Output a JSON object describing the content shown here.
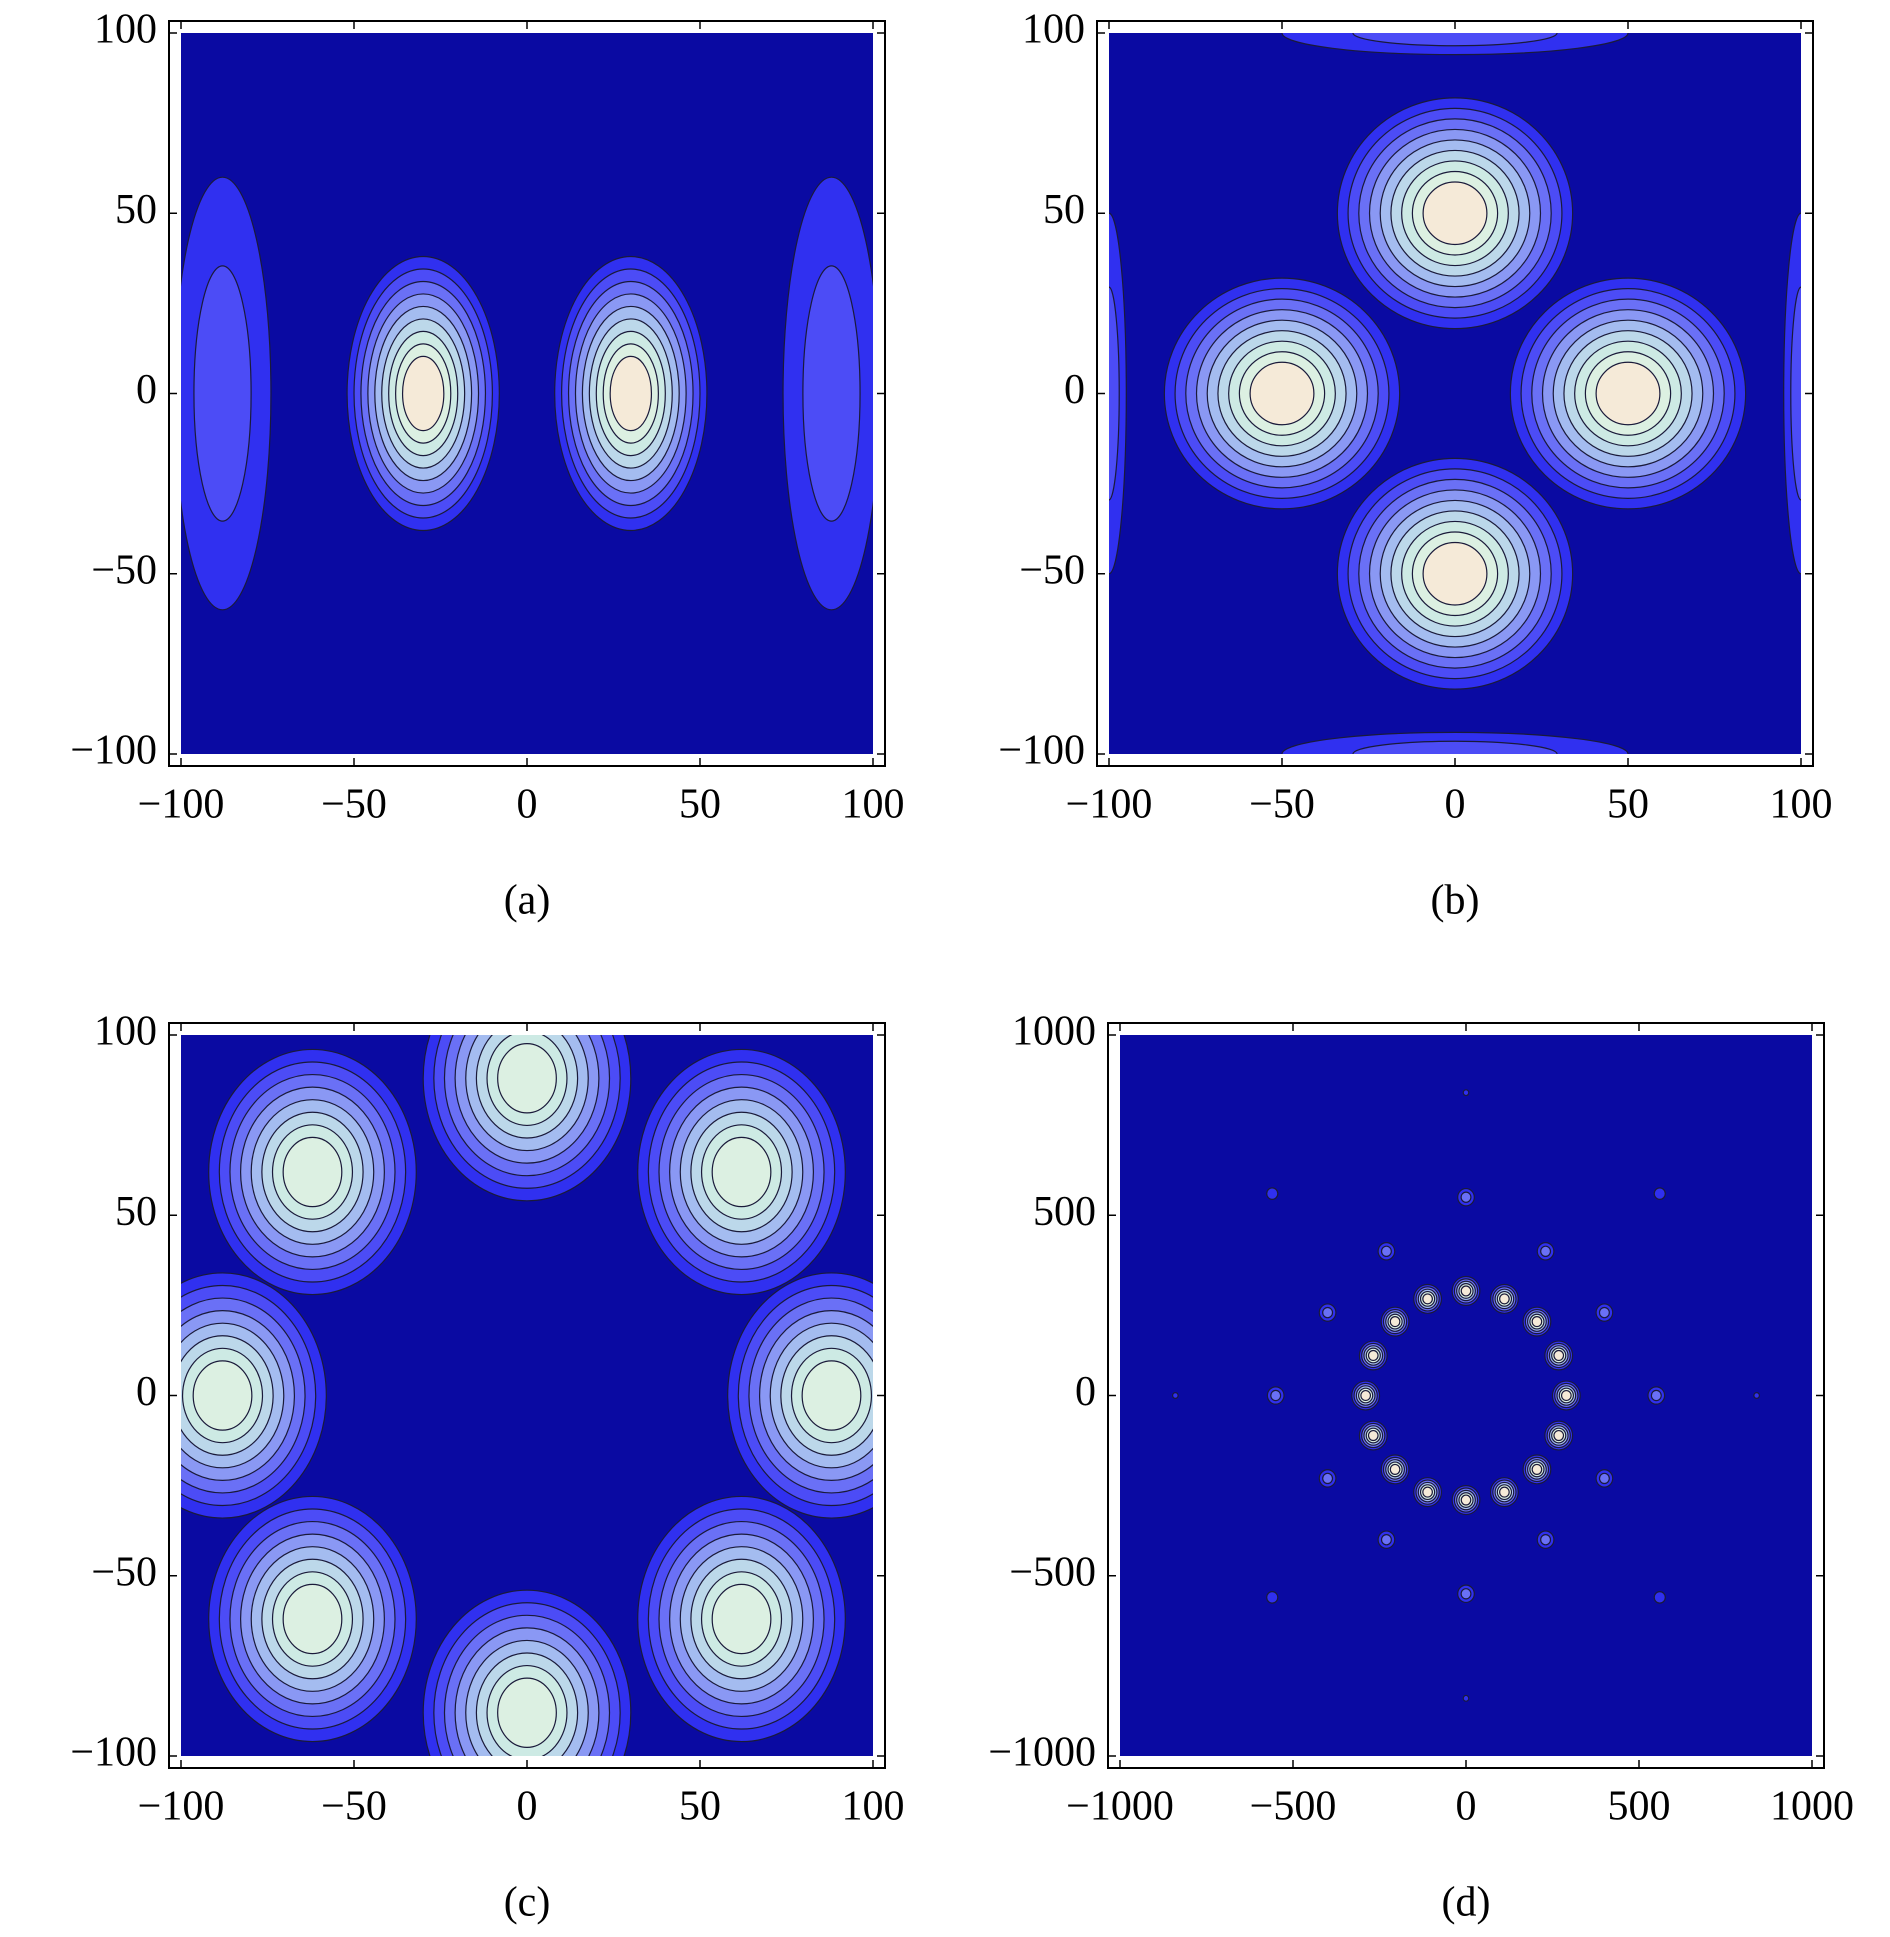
{
  "chart_data": [
    {
      "type": "contour",
      "caption": "(a)",
      "xlim": [
        -100,
        100
      ],
      "ylim": [
        -100,
        100
      ],
      "xticks": [
        {
          "value": -100,
          "label": "−100"
        },
        {
          "value": -50,
          "label": "−50"
        },
        0,
        50,
        100
      ],
      "yticks": [
        {
          "value": -100,
          "label": "−100"
        },
        {
          "value": -50,
          "label": "−50"
        },
        0,
        50,
        100
      ],
      "colors": [
        "#0a0aa2",
        "#3030f0",
        "#4c4cf6",
        "#6a70f6",
        "#8a98f4",
        "#a4bcf0",
        "#bcd8ea",
        "#cdeae4",
        "#dcf0e2",
        "#f5ead8"
      ],
      "peaks": [
        {
          "x": -30,
          "y": 0
        },
        {
          "x": 30,
          "y": 0
        },
        {
          "x": -88,
          "y": 0
        },
        {
          "x": 88,
          "y": 0
        }
      ]
    },
    {
      "type": "contour",
      "caption": "(b)",
      "xlim": [
        -100,
        100
      ],
      "ylim": [
        -100,
        100
      ],
      "xticks": [
        {
          "value": -100,
          "label": "−100"
        },
        {
          "value": -50,
          "label": "−50"
        },
        0,
        50,
        100
      ],
      "yticks": [
        {
          "value": -100,
          "label": "−100"
        },
        {
          "value": -50,
          "label": "−50"
        },
        0,
        50,
        100
      ],
      "colors": [
        "#0a0aa2",
        "#3030f0",
        "#4c4cf6",
        "#6a70f6",
        "#8a98f4",
        "#a4bcf0",
        "#bcd8ea",
        "#cdeae4",
        "#dcf0e2",
        "#f5ead8"
      ],
      "peaks": [
        {
          "x": 0,
          "y": 50
        },
        {
          "x": 0,
          "y": -50
        },
        {
          "x": -50,
          "y": 0
        },
        {
          "x": 50,
          "y": 0
        },
        {
          "x": 0,
          "y": 100
        },
        {
          "x": 0,
          "y": -100
        },
        {
          "x": -100,
          "y": 0
        },
        {
          "x": 100,
          "y": 0
        }
      ]
    },
    {
      "type": "contour",
      "caption": "(c)",
      "xlim": [
        -100,
        100
      ],
      "ylim": [
        -100,
        100
      ],
      "xticks": [
        {
          "value": -100,
          "label": "−100"
        },
        {
          "value": -50,
          "label": "−50"
        },
        0,
        50,
        100
      ],
      "yticks": [
        {
          "value": -100,
          "label": "−100"
        },
        {
          "value": -50,
          "label": "−50"
        },
        0,
        50,
        100
      ],
      "colors": [
        "#0a0aa2",
        "#3030f0",
        "#4c4cf6",
        "#6a70f6",
        "#8a98f4",
        "#a4bcf0",
        "#bcd8ea",
        "#cdeae4",
        "#dcf0e2",
        "#f5ead8"
      ],
      "peaks": [
        {
          "x": 0,
          "y": 88
        },
        {
          "x": 0,
          "y": -88
        },
        {
          "x": -88,
          "y": 0
        },
        {
          "x": 88,
          "y": 0
        },
        {
          "x": -62,
          "y": 62
        },
        {
          "x": 62,
          "y": 62
        },
        {
          "x": -62,
          "y": -62
        },
        {
          "x": 62,
          "y": -62
        }
      ]
    },
    {
      "type": "contour",
      "caption": "(d)",
      "xlim": [
        -1000,
        1000
      ],
      "ylim": [
        -1000,
        1000
      ],
      "xticks": [
        {
          "value": -1000,
          "label": "−1000"
        },
        {
          "value": -500,
          "label": "−500"
        },
        0,
        500,
        1000
      ],
      "yticks": [
        {
          "value": -1000,
          "label": "−1000"
        },
        {
          "value": -500,
          "label": "−500"
        },
        0,
        500,
        1000
      ],
      "colors": [
        "#0a0aa2",
        "#3030f0",
        "#6a70f6",
        "#a4bcf0",
        "#dcf0e2",
        "#f5ead8"
      ],
      "peaks": [
        {
          "x": 290,
          "y": 0
        },
        {
          "x": 268,
          "y": 111
        },
        {
          "x": 205,
          "y": 205
        },
        {
          "x": 111,
          "y": 268
        },
        {
          "x": 0,
          "y": 290
        },
        {
          "x": -111,
          "y": 268
        },
        {
          "x": -205,
          "y": 205
        },
        {
          "x": -268,
          "y": 111
        },
        {
          "x": -290,
          "y": 0
        },
        {
          "x": -268,
          "y": -111
        },
        {
          "x": -205,
          "y": -205
        },
        {
          "x": -111,
          "y": -268
        },
        {
          "x": 0,
          "y": -290
        },
        {
          "x": 111,
          "y": -268
        },
        {
          "x": 205,
          "y": -205
        },
        {
          "x": 268,
          "y": -111
        },
        {
          "x": 400,
          "y": 230
        },
        {
          "x": 230,
          "y": 400
        },
        {
          "x": -230,
          "y": 400
        },
        {
          "x": -400,
          "y": 230
        },
        {
          "x": -400,
          "y": -230
        },
        {
          "x": -230,
          "y": -400
        },
        {
          "x": 230,
          "y": -400
        },
        {
          "x": 400,
          "y": -230
        },
        {
          "x": 550,
          "y": 0
        },
        {
          "x": 0,
          "y": 550
        },
        {
          "x": -550,
          "y": 0
        },
        {
          "x": 0,
          "y": -550
        },
        {
          "x": 840,
          "y": 0
        },
        {
          "x": 0,
          "y": 840
        },
        {
          "x": -840,
          "y": 0
        },
        {
          "x": 0,
          "y": -840
        },
        {
          "x": 560,
          "y": 560
        },
        {
          "x": -560,
          "y": 560
        },
        {
          "x": -560,
          "y": -560
        },
        {
          "x": 560,
          "y": -560
        }
      ]
    }
  ]
}
